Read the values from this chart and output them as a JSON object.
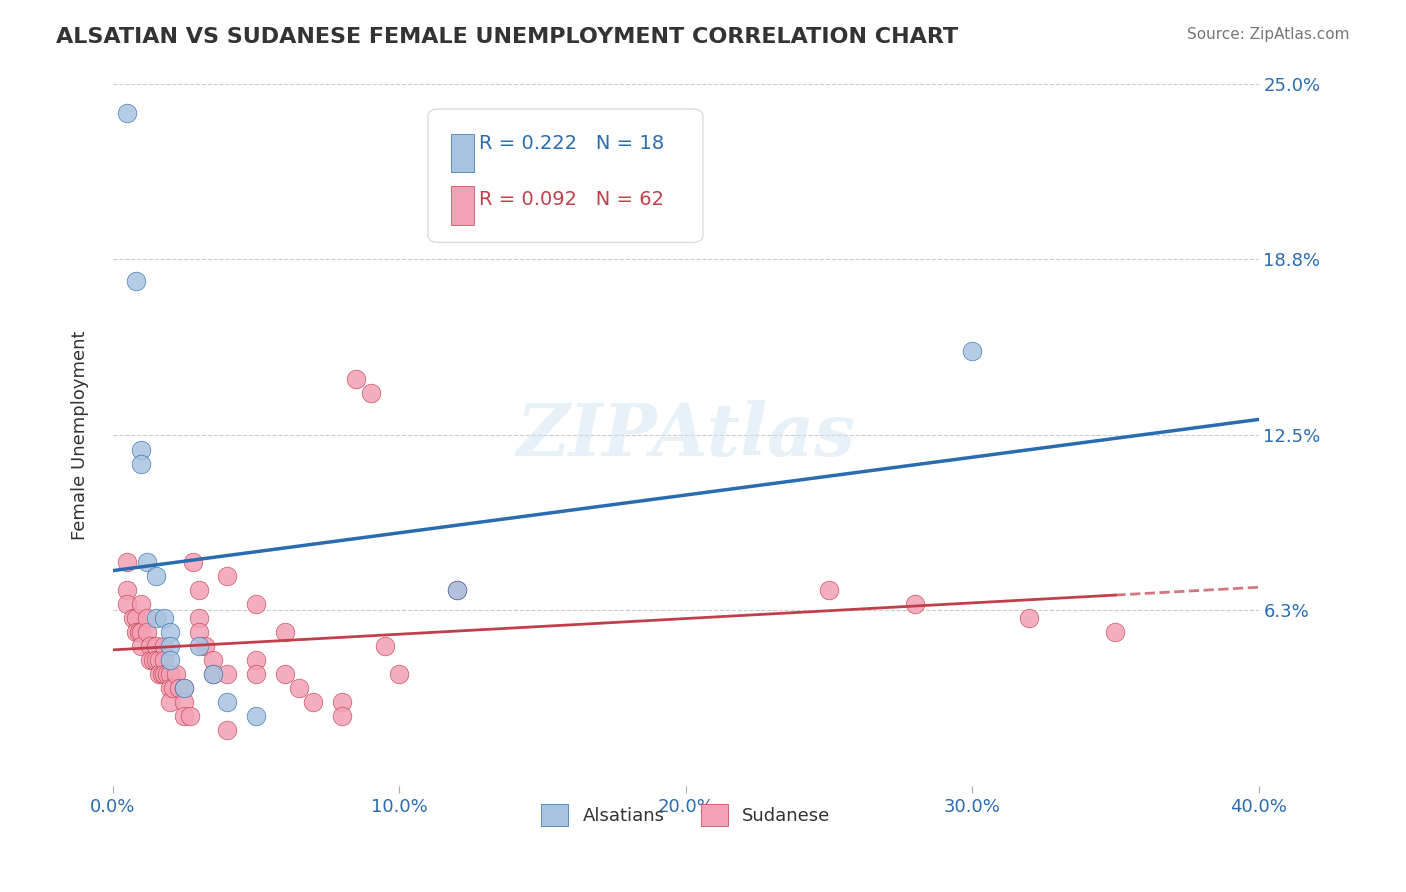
{
  "title": "ALSATIAN VS SUDANESE FEMALE UNEMPLOYMENT CORRELATION CHART",
  "source_text": "Source: ZipAtlas.com",
  "xlabel": "",
  "ylabel": "Female Unemployment",
  "xlim": [
    0.0,
    0.4
  ],
  "ylim": [
    0.0,
    0.25
  ],
  "yticks": [
    0.063,
    0.125,
    0.188,
    0.25
  ],
  "ytick_labels": [
    "6.3%",
    "12.5%",
    "18.8%",
    "25.0%"
  ],
  "xticks": [
    0.0,
    0.1,
    0.2,
    0.3,
    0.4
  ],
  "xtick_labels": [
    "0.0%",
    "10.0%",
    "20.0%",
    "30.0%",
    "40.0%"
  ],
  "alsatians_R": 0.222,
  "alsatians_N": 18,
  "sudanese_R": 0.092,
  "sudanese_N": 62,
  "alsatians_color": "#a8c4e0",
  "alsatians_line_color": "#2b6cb0",
  "sudanese_color": "#f4a0b5",
  "sudanese_line_color": "#c0404a",
  "watermark": "ZIPAtlas",
  "background_color": "#ffffff",
  "alsatians_x": [
    0.005,
    0.008,
    0.01,
    0.01,
    0.012,
    0.015,
    0.015,
    0.018,
    0.02,
    0.02,
    0.02,
    0.025,
    0.03,
    0.035,
    0.04,
    0.05,
    0.3,
    0.12
  ],
  "alsatians_y": [
    0.24,
    0.18,
    0.12,
    0.115,
    0.08,
    0.075,
    0.06,
    0.06,
    0.055,
    0.05,
    0.045,
    0.035,
    0.05,
    0.04,
    0.03,
    0.025,
    0.155,
    0.07
  ],
  "sudanese_x": [
    0.005,
    0.005,
    0.005,
    0.007,
    0.008,
    0.008,
    0.009,
    0.01,
    0.01,
    0.01,
    0.012,
    0.012,
    0.013,
    0.013,
    0.014,
    0.015,
    0.015,
    0.016,
    0.016,
    0.017,
    0.018,
    0.018,
    0.018,
    0.019,
    0.02,
    0.02,
    0.02,
    0.021,
    0.022,
    0.023,
    0.025,
    0.025,
    0.025,
    0.027,
    0.028,
    0.03,
    0.03,
    0.03,
    0.032,
    0.035,
    0.035,
    0.04,
    0.04,
    0.05,
    0.05,
    0.05,
    0.06,
    0.06,
    0.065,
    0.07,
    0.08,
    0.08,
    0.085,
    0.09,
    0.095,
    0.1,
    0.25,
    0.28,
    0.32,
    0.35,
    0.04,
    0.12
  ],
  "sudanese_y": [
    0.08,
    0.07,
    0.065,
    0.06,
    0.06,
    0.055,
    0.055,
    0.065,
    0.055,
    0.05,
    0.06,
    0.055,
    0.05,
    0.045,
    0.045,
    0.05,
    0.045,
    0.045,
    0.04,
    0.04,
    0.05,
    0.045,
    0.04,
    0.04,
    0.04,
    0.035,
    0.03,
    0.035,
    0.04,
    0.035,
    0.035,
    0.03,
    0.025,
    0.025,
    0.08,
    0.07,
    0.06,
    0.055,
    0.05,
    0.045,
    0.04,
    0.04,
    0.02,
    0.045,
    0.065,
    0.04,
    0.055,
    0.04,
    0.035,
    0.03,
    0.03,
    0.025,
    0.145,
    0.14,
    0.05,
    0.04,
    0.07,
    0.065,
    0.06,
    0.055,
    0.075,
    0.07
  ]
}
